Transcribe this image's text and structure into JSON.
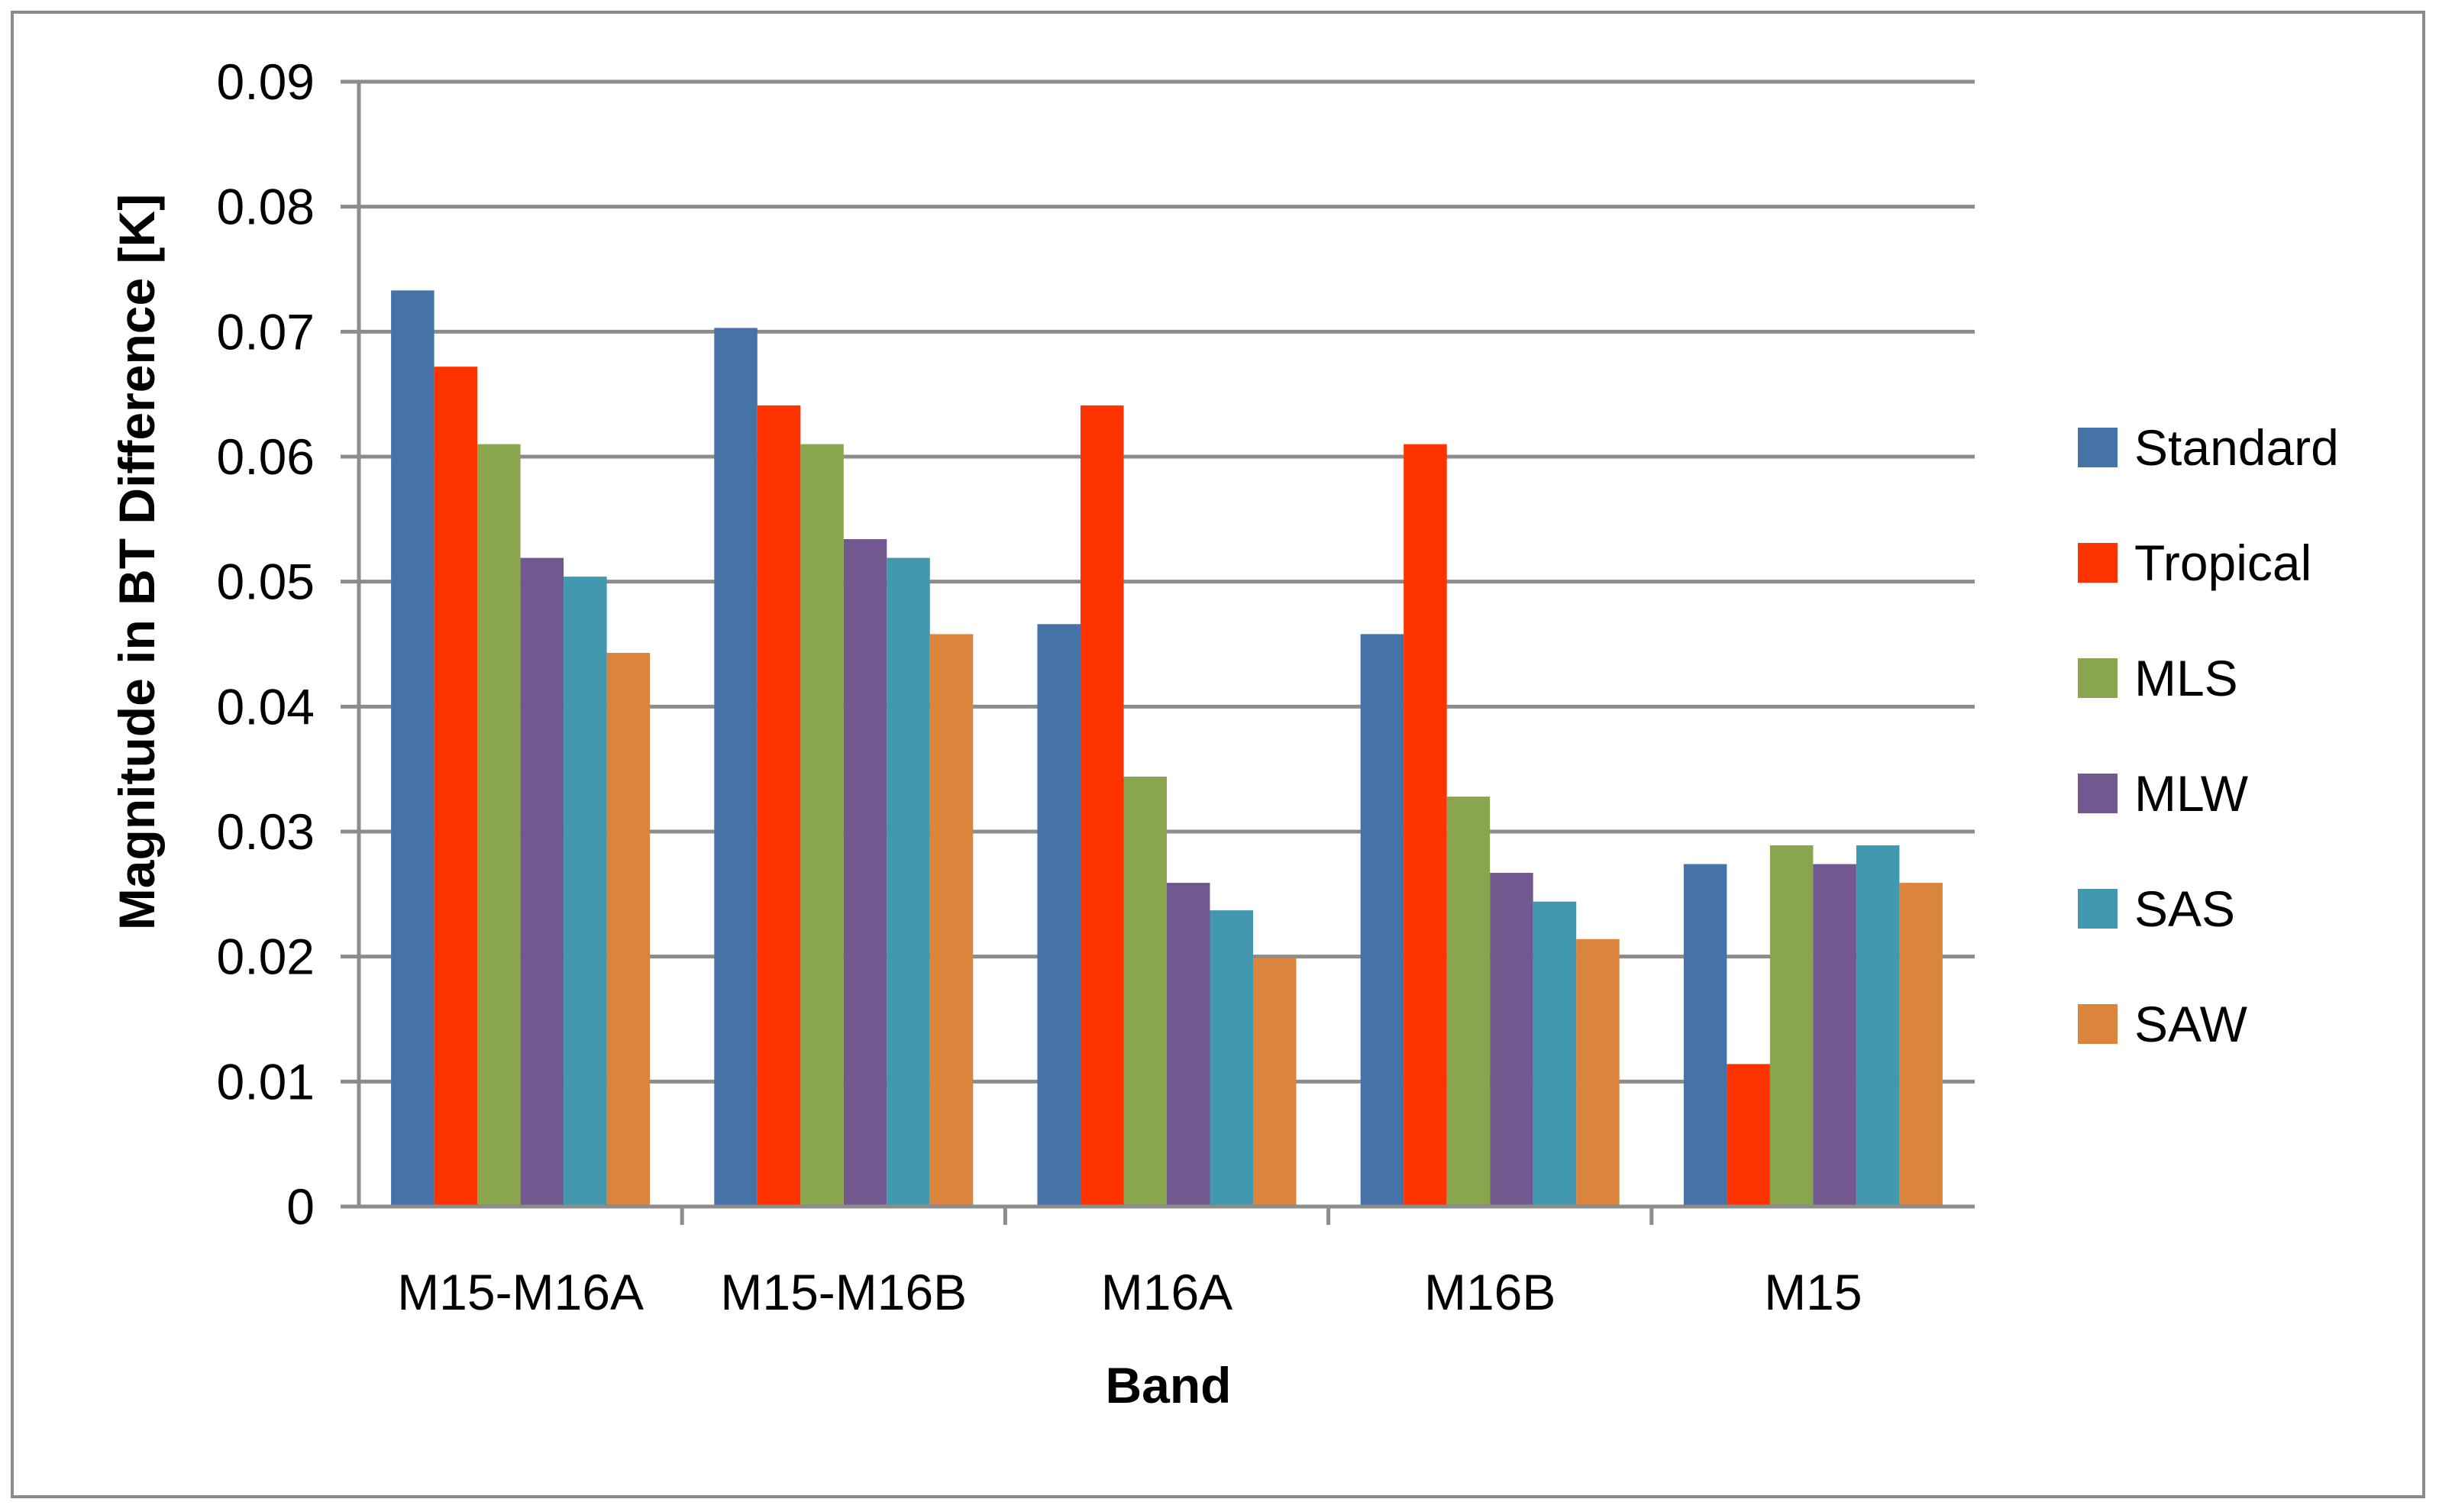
{
  "chart_data": {
    "type": "bar",
    "title": "",
    "xlabel": "Band",
    "ylabel": "Magnitude in BT Difference [K]",
    "ylim": [
      0,
      0.09
    ],
    "yticks": [
      "0",
      "0.01",
      "0.02",
      "0.03",
      "0.04",
      "0.05",
      "0.06",
      "0.07",
      "0.08",
      "0.09"
    ],
    "ytick_values": [
      0,
      0.01,
      0.02,
      0.03,
      0.04,
      0.05,
      0.06,
      0.07,
      0.08,
      0.09
    ],
    "grid": true,
    "legend_position": "right",
    "categories": [
      "M15-M16A",
      "M15-M16B",
      "M16A",
      "M16B",
      "M15"
    ],
    "series": [
      {
        "name": "Standard",
        "color": "#4572A7",
        "values": [
          0.0733,
          0.0703,
          0.0466,
          0.0458,
          0.0274
        ]
      },
      {
        "name": "Tropical",
        "color": "#FF3300",
        "values": [
          0.0672,
          0.0641,
          0.0641,
          0.061,
          0.0114
        ]
      },
      {
        "name": "MLS",
        "color": "#89A54E",
        "values": [
          0.061,
          0.061,
          0.0344,
          0.0328,
          0.0289
        ]
      },
      {
        "name": "MLW",
        "color": "#71588F",
        "values": [
          0.0519,
          0.0534,
          0.0259,
          0.0267,
          0.0274
        ]
      },
      {
        "name": "SAS",
        "color": "#4198AF",
        "values": [
          0.0504,
          0.0519,
          0.0237,
          0.0244,
          0.0289
        ]
      },
      {
        "name": "SAW",
        "color": "#DB843D",
        "values": [
          0.0443,
          0.0458,
          0.0199,
          0.0214,
          0.0259
        ]
      }
    ]
  },
  "colors": {
    "grid": "#8c8c8c",
    "frame": "#8c8c8c"
  }
}
